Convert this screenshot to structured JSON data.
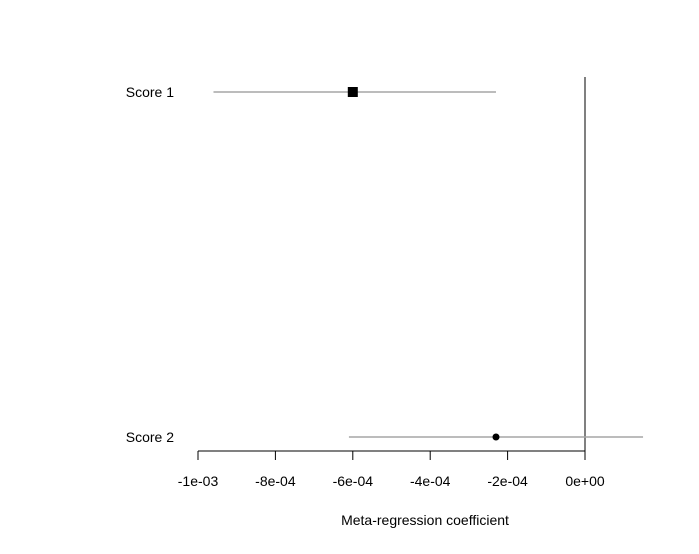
{
  "chart_data": {
    "type": "forest",
    "xlabel": "Meta-regression coefficient",
    "xlim": [
      -0.001,
      0.0
    ],
    "x_ticks": [
      -0.001,
      -0.0008,
      -0.0006,
      -0.0004,
      -0.0002,
      0.0
    ],
    "x_tick_labels": [
      "-1e-03",
      "-8e-04",
      "-6e-04",
      "-4e-04",
      "-2e-04",
      "0e+00"
    ],
    "reference_line": 0.0,
    "grid": false,
    "rows": [
      {
        "label": "Score 1",
        "estimate": -0.0006,
        "ci_lower": -0.00096,
        "ci_upper": -0.00023,
        "marker": "square-large"
      },
      {
        "label": "Score 2",
        "estimate": -0.00023,
        "ci_lower": -0.00061,
        "ci_upper": 0.00015,
        "marker": "dot-small"
      }
    ],
    "colors": {
      "ci_line": "#a6a6a6",
      "marker": "#000000",
      "axis": "#000000",
      "reference_line": "#000000"
    }
  }
}
